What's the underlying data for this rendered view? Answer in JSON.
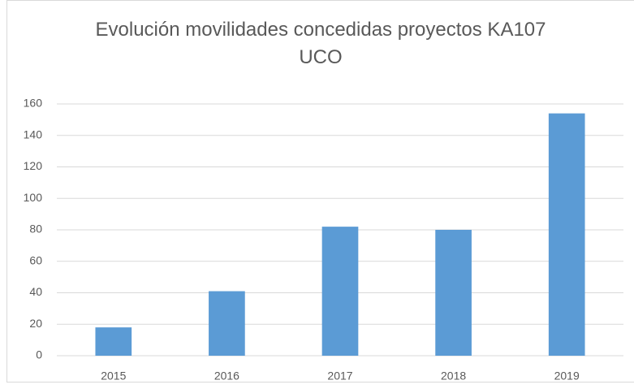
{
  "chart_data": {
    "type": "bar",
    "title": "Evolución movilidades concedidas proyectos KA107 UCO",
    "categories": [
      "2015",
      "2016",
      "2017",
      "2018",
      "2019"
    ],
    "values": [
      18,
      41,
      82,
      80,
      154
    ],
    "color": "#5b9bd5",
    "ylim": [
      0,
      160
    ],
    "yticks": [
      0,
      20,
      40,
      60,
      80,
      100,
      120,
      140,
      160
    ],
    "grid": true
  }
}
